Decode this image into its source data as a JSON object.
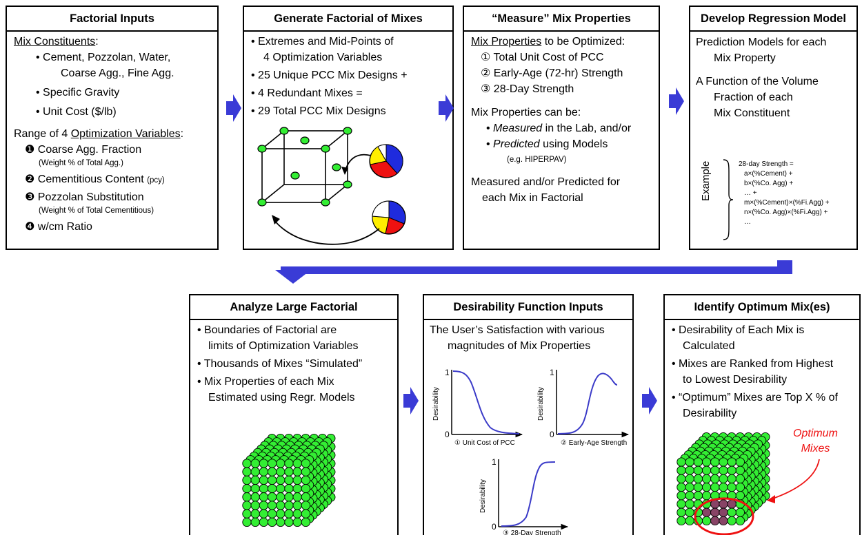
{
  "colors": {
    "arrow": "#3a3bd6",
    "sphere": "#33ee33",
    "optimum": "#884466",
    "highlight": "#ee1111",
    "curve": "#3b3bc8"
  },
  "box1": {
    "title": "Factorial Inputs",
    "constituents_label": "Mix Constituents",
    "constituents_colon": ":",
    "items": [
      "Cement, Pozzolan, Water,",
      "Coarse Agg., Fine Agg.",
      "Specific Gravity",
      "Unit Cost ($/lb)"
    ],
    "range_prefix": "Range of 4 ",
    "range_label": "Optimization Variables",
    "range_colon": ":",
    "vars": [
      {
        "num": "❶",
        "label": "Coarse Agg. Fraction",
        "note": "(Weight % of Total Agg.)"
      },
      {
        "num": "❷",
        "label": "Cementitious Content",
        "inline_note": "(pcy)"
      },
      {
        "num": "❸",
        "label": "Pozzolan Substitution",
        "note": "(Weight % of Total Cementitious)"
      },
      {
        "num": "❹",
        "label": "w/cm Ratio"
      }
    ]
  },
  "box2": {
    "title": "Generate Factorial of Mixes",
    "lines": [
      "Extremes and Mid-Points of",
      "4 Optimization Variables",
      "25 Unique PCC Mix Designs +",
      "4 Redundant Mixes =",
      "29 Total PCC Mix Designs"
    ]
  },
  "box3": {
    "title": "“Measure” Mix Properties",
    "props_label": "Mix Properties",
    "props_suffix": " to be Optimized:",
    "props": [
      {
        "num": "①",
        "label": "Total Unit Cost of PCC"
      },
      {
        "num": "②",
        "label": "Early-Age (72-hr) Strength"
      },
      {
        "num": "③",
        "label": "28-Day Strength"
      }
    ],
    "can_be": "Mix Properties can be:",
    "measured_word": "Measured",
    "measured_rest": " in the Lab, and/or",
    "predicted_word": "Predicted",
    "predicted_rest": " using Models",
    "example_note": "(e.g. HIPERPAV)",
    "closing": [
      "Measured and/or Predicted for",
      "each Mix in Factorial"
    ]
  },
  "box4": {
    "title": "Develop Regression Model",
    "para1": [
      "Prediction Models for each",
      "Mix Property"
    ],
    "para2": [
      "A Function of the Volume",
      "Fraction of each",
      "Mix Constituent"
    ],
    "example_label": "Example",
    "equation": [
      "28-day Strength =",
      "a×(%Cement) +",
      "b×(%Co. Agg) +",
      "… +",
      "m×(%Cement)×(%Fi.Agg) +",
      "n×(%Co. Agg)×(%Fi.Agg) +",
      "…"
    ]
  },
  "box5": {
    "title": "Analyze Large Factorial",
    "lines": [
      "Boundaries of Factorial are",
      "limits of Optimization Variables",
      "Thousands of Mixes “Simulated”",
      "Mix Properties of each Mix",
      "Estimated using Regr. Models"
    ]
  },
  "box6": {
    "title": "Desirability Function Inputs",
    "intro": [
      "The User’s Satisfaction with various",
      "magnitudes of Mix Properties"
    ],
    "ylabel": "Desirability",
    "y_one": "1",
    "y_zero": "0",
    "charts": [
      "① Unit Cost of PCC",
      "② Early-Age Strength",
      "③ 28-Day Strength"
    ]
  },
  "box7": {
    "title": "Identify Optimum Mix(es)",
    "lines": [
      "Desirability of Each Mix is",
      "Calculated",
      "Mixes are Ranked from Highest",
      "to Lowest Desirability",
      "“Optimum” Mixes are Top X % of",
      "Desirability"
    ],
    "optimum_label": [
      "Optimum",
      "Mixes"
    ]
  }
}
